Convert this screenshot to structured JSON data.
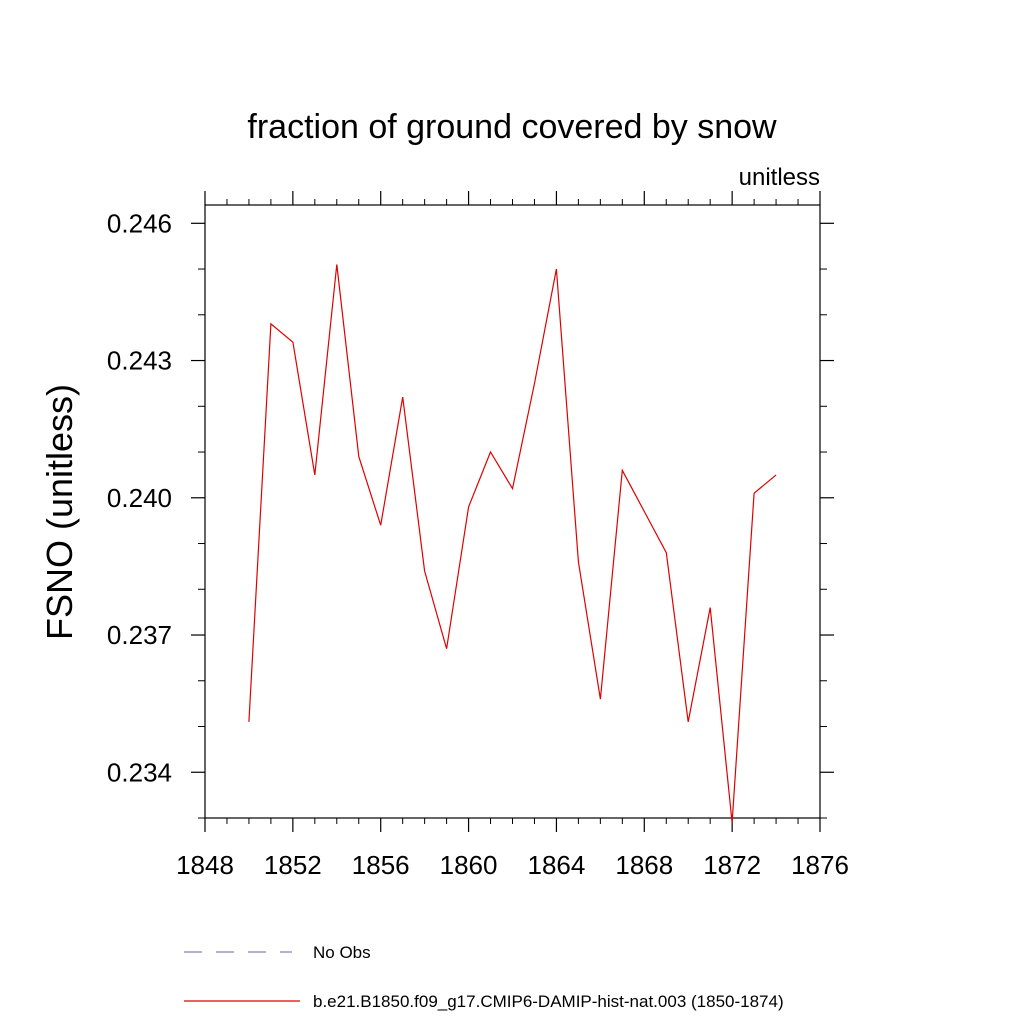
{
  "chart_data": {
    "type": "line",
    "title": "fraction of ground covered by snow",
    "units_label": "unitless",
    "ylabel": "FSNO  (unitless)",
    "xlabel": "",
    "xlim": [
      1848,
      1876
    ],
    "ylim": [
      0.233,
      0.2464
    ],
    "x_ticks": [
      1848,
      1852,
      1856,
      1860,
      1864,
      1868,
      1872,
      1876
    ],
    "x_tick_labels": [
      "1848",
      "1852",
      "1856",
      "1860",
      "1864",
      "1868",
      "1872",
      "1876"
    ],
    "y_ticks": [
      0.234,
      0.237,
      0.24,
      0.243,
      0.246
    ],
    "y_tick_labels": [
      "0.234",
      "0.237",
      "0.240",
      "0.243",
      "0.246"
    ],
    "grid": false,
    "legend_position": "bottom",
    "legend": [
      {
        "label": "No Obs",
        "color": "#8080c0",
        "style": "dashed"
      },
      {
        "label": "b.e21.B1850.f09_g17.CMIP6-DAMIP-hist-nat.003 (1850-1874)",
        "color": "#e00000",
        "style": "solid"
      }
    ],
    "series": [
      {
        "name": "b.e21.B1850.f09_g17.CMIP6-DAMIP-hist-nat.003 (1850-1874)",
        "color": "#e00000",
        "x": [
          1850,
          1851,
          1852,
          1853,
          1854,
          1855,
          1856,
          1857,
          1858,
          1859,
          1860,
          1861,
          1862,
          1863,
          1864,
          1865,
          1866,
          1867,
          1868,
          1869,
          1870,
          1871,
          1872,
          1873,
          1874
        ],
        "y": [
          0.2351,
          0.2438,
          0.2434,
          0.2405,
          0.2451,
          0.2409,
          0.2394,
          0.2422,
          0.2384,
          0.2367,
          0.2398,
          0.241,
          0.2402,
          0.2425,
          0.245,
          0.2386,
          0.2356,
          0.2406,
          0.2397,
          0.2388,
          0.2351,
          0.2376,
          0.2329,
          0.2401,
          0.2405
        ]
      }
    ]
  }
}
